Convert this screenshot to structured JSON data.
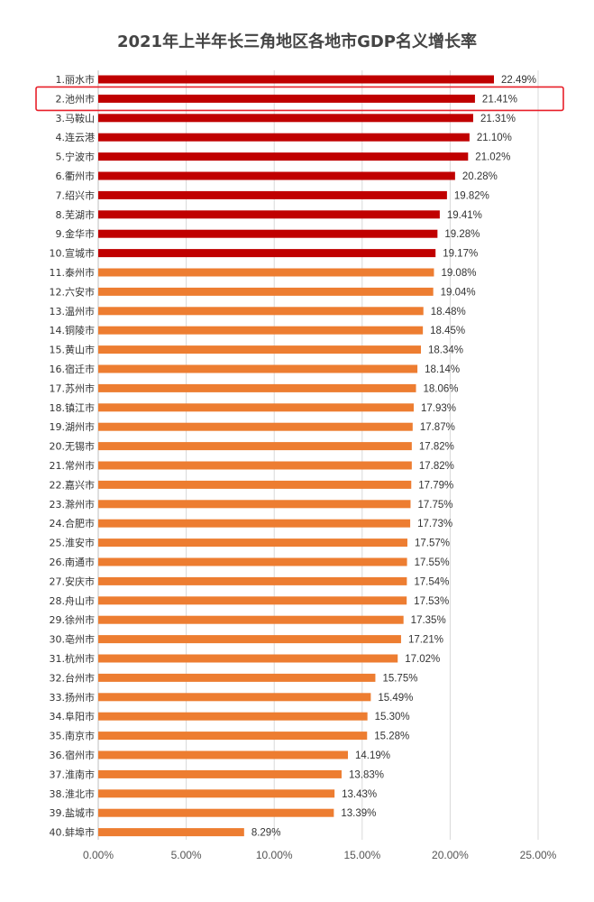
{
  "chart_data": {
    "type": "bar",
    "orientation": "horizontal",
    "title": "2021年上半年长三角地区各地市GDP名义增长率",
    "categories": [
      "1.丽水市",
      "2.池州市",
      "3.马鞍山",
      "4.连云港",
      "5.宁波市",
      "6.衢州市",
      "7.绍兴市",
      "8.芜湖市",
      "9.金华市",
      "10.宣城市",
      "11.泰州市",
      "12.六安市",
      "13.温州市",
      "14.铜陵市",
      "15.黄山市",
      "16.宿迁市",
      "17.苏州市",
      "18.镇江市",
      "19.湖州市",
      "20.无锡市",
      "21.常州市",
      "22.嘉兴市",
      "23.滁州市",
      "24.合肥市",
      "25.淮安市",
      "26.南通市",
      "27.安庆市",
      "28.舟山市",
      "29.徐州市",
      "30.亳州市",
      "31.杭州市",
      "32.台州市",
      "33.扬州市",
      "34.阜阳市",
      "35.南京市",
      "36.宿州市",
      "37.淮南市",
      "38.淮北市",
      "39.盐城市",
      "40.蚌埠市"
    ],
    "values": [
      22.49,
      21.41,
      21.31,
      21.1,
      21.02,
      20.28,
      19.82,
      19.41,
      19.28,
      19.17,
      19.08,
      19.04,
      18.48,
      18.45,
      18.34,
      18.14,
      18.06,
      17.93,
      17.87,
      17.82,
      17.82,
      17.79,
      17.75,
      17.73,
      17.57,
      17.55,
      17.54,
      17.53,
      17.35,
      17.21,
      17.02,
      15.75,
      15.49,
      15.3,
      15.28,
      14.19,
      13.83,
      13.43,
      13.39,
      8.29
    ],
    "value_labels": [
      "22.49%",
      "21.41%",
      "21.31%",
      "21.10%",
      "21.02%",
      "20.28%",
      "19.82%",
      "19.41%",
      "19.28%",
      "19.17%",
      "19.08%",
      "19.04%",
      "18.48%",
      "18.45%",
      "18.34%",
      "18.14%",
      "18.06%",
      "17.93%",
      "17.87%",
      "17.82%",
      "17.82%",
      "17.79%",
      "17.75%",
      "17.73%",
      "17.57%",
      "17.55%",
      "17.54%",
      "17.53%",
      "17.35%",
      "17.21%",
      "17.02%",
      "15.75%",
      "15.49%",
      "15.30%",
      "15.28%",
      "14.19%",
      "13.83%",
      "13.43%",
      "13.39%",
      "8.29%"
    ],
    "xlim": [
      0,
      25
    ],
    "x_ticks": [
      0,
      5,
      10,
      15,
      20,
      25
    ],
    "x_tick_labels": [
      "0.00%",
      "5.00%",
      "10.00%",
      "15.00%",
      "20.00%",
      "25.00%"
    ],
    "grid": "vertical",
    "legend": "none",
    "top_count": 10,
    "colors": {
      "top": "#c00000",
      "rest": "#ed7d31",
      "grid": "#d9d9d9",
      "highlight_box": "#e8202a"
    },
    "highlight_index": 1
  }
}
